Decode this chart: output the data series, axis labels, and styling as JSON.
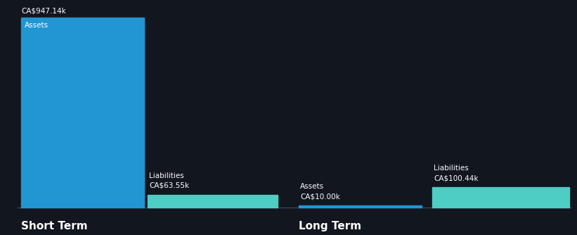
{
  "background_color": "#12161f",
  "bar_color_assets": "#2196d3",
  "bar_color_liabilities": "#4ecdc4",
  "text_color": "#ffffff",
  "short_term": {
    "assets_value": 947.14,
    "liabilities_value": 63.55,
    "assets_label": "Assets",
    "liabilities_label": "Liabilities",
    "assets_annotation": "CA$947.14k",
    "liabilities_annotation": "CA$63.55k",
    "section_label": "Short Term"
  },
  "long_term": {
    "assets_value": 10.0,
    "liabilities_value": 100.44,
    "assets_label": "Assets",
    "liabilities_label": "Liabilities",
    "assets_annotation": "CA$10.00k",
    "liabilities_annotation": "CA$100.44k",
    "section_label": "Long Term"
  },
  "max_value": 947.14,
  "figsize": [
    8.21,
    3.34
  ],
  "dpi": 100
}
